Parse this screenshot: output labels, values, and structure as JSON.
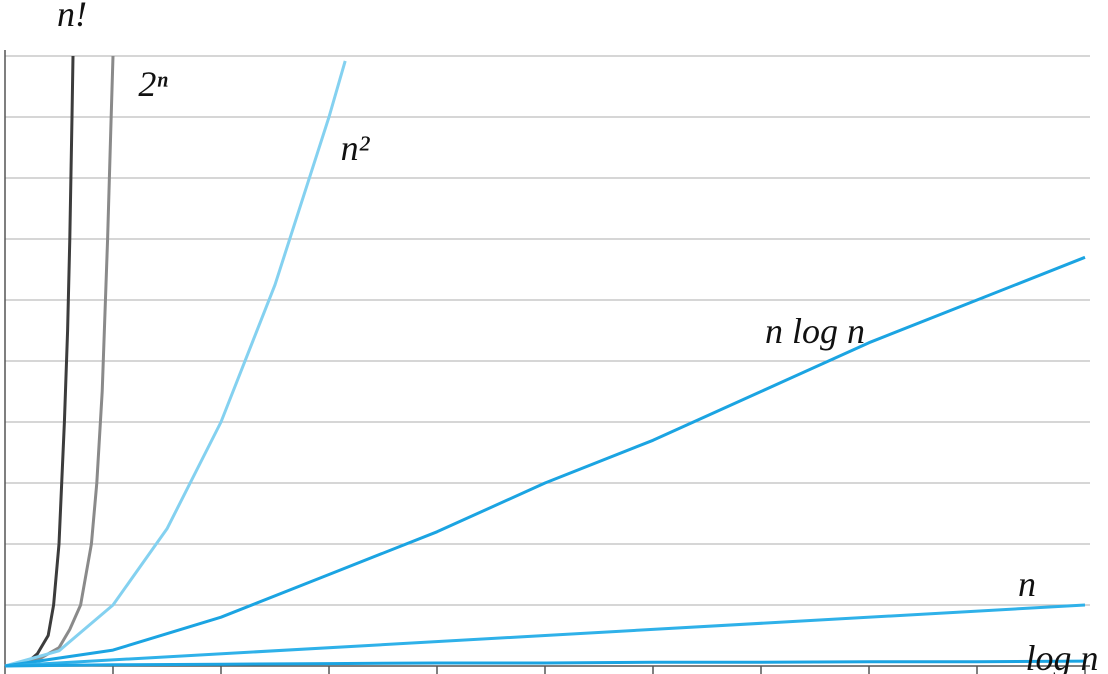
{
  "chart_data": {
    "type": "line",
    "xlim": [
      0,
      10
    ],
    "ylim": [
      0,
      10
    ],
    "xticks": [
      0,
      1,
      2,
      3,
      4,
      5,
      6,
      7,
      8,
      9,
      10
    ],
    "yticks": [
      0,
      1,
      2,
      3,
      4,
      5,
      6,
      7,
      8,
      9,
      10
    ],
    "grid": true,
    "series": [
      {
        "name": "n!",
        "color": "#3c3c3c",
        "x": [
          0,
          0.2,
          0.3,
          0.4,
          0.45,
          0.5,
          0.55,
          0.58,
          0.6,
          0.62,
          0.63
        ],
        "values": [
          0,
          0.05,
          0.2,
          0.5,
          1,
          2,
          4,
          5.5,
          7,
          9,
          10
        ]
      },
      {
        "name": "2ⁿ",
        "color": "#8a8a8a",
        "x": [
          0,
          0.3,
          0.5,
          0.6,
          0.7,
          0.8,
          0.85,
          0.9,
          0.95,
          0.98,
          1.0
        ],
        "values": [
          0,
          0.1,
          0.3,
          0.6,
          1,
          2,
          3,
          4.5,
          7,
          8.8,
          10
        ]
      },
      {
        "name": "n²",
        "color": "#84d1f0",
        "x": [
          0,
          0.5,
          1,
          1.5,
          2,
          2.5,
          3,
          3.15
        ],
        "values": [
          0,
          0.25,
          1,
          2.25,
          4,
          6.25,
          9,
          9.92
        ]
      },
      {
        "name": "n log n",
        "color": "#1ba4e2",
        "x": [
          0,
          1,
          2,
          3,
          4,
          5,
          6,
          7,
          8,
          9,
          10
        ],
        "values": [
          0,
          0.26,
          0.8,
          1.5,
          2.2,
          3.0,
          3.7,
          4.5,
          5.3,
          6.0,
          6.7
        ]
      },
      {
        "name": "n",
        "color": "#2fb1e9",
        "x": [
          0,
          10
        ],
        "values": [
          0,
          1.0
        ]
      },
      {
        "name": "log n",
        "color": "#1ba4e2",
        "x": [
          0,
          1,
          2,
          3,
          4,
          5,
          6,
          7,
          8,
          9,
          10
        ],
        "values": [
          0,
          0.02,
          0.03,
          0.04,
          0.05,
          0.05,
          0.06,
          0.06,
          0.07,
          0.07,
          0.08
        ]
      }
    ]
  }
}
